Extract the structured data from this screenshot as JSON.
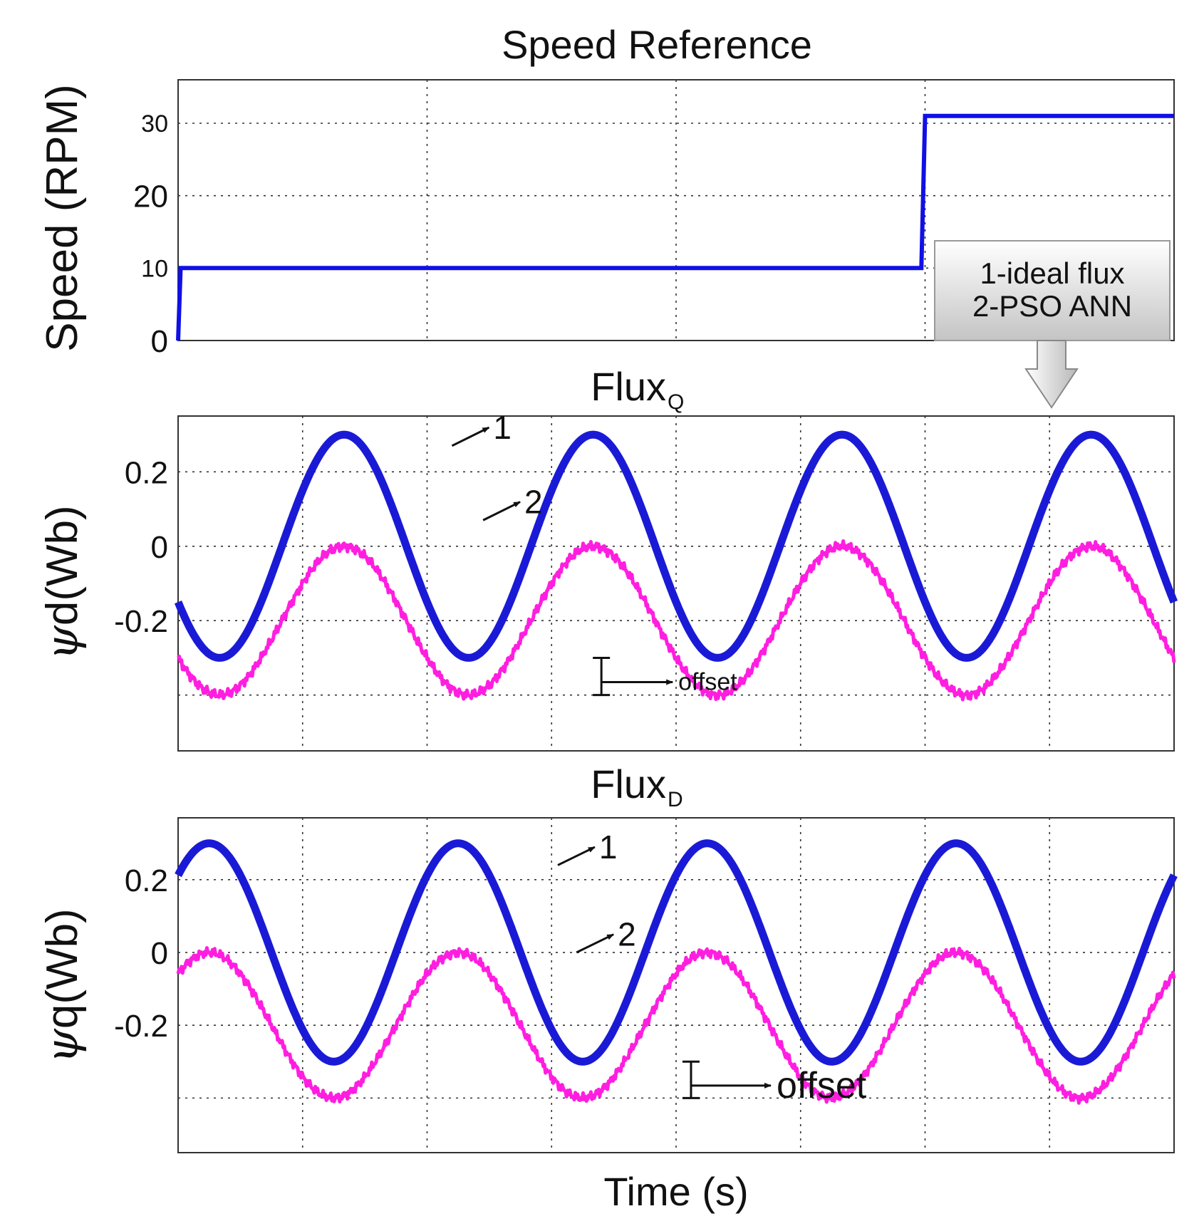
{
  "chart_data": [
    {
      "type": "line",
      "title": "Speed Reference",
      "xlabel": "",
      "ylabel": "Speed (RPM)",
      "xlim": [
        0,
        8
      ],
      "ylim": [
        0,
        36
      ],
      "yticks": [
        {
          "value": 0,
          "label": "0",
          "size": "large"
        },
        {
          "value": 10,
          "label": "10",
          "size": "small"
        },
        {
          "value": 20,
          "label": "20",
          "size": "large"
        },
        {
          "value": 30,
          "label": "30",
          "size": "small"
        }
      ],
      "xgrid": [
        2,
        4,
        6
      ],
      "series": [
        {
          "name": "Speed reference",
          "color": "#1010e6",
          "points": [
            [
              0,
              0
            ],
            [
              0.02,
              10
            ],
            [
              5.97,
              10
            ],
            [
              6.0,
              31
            ],
            [
              8,
              31
            ]
          ]
        }
      ]
    },
    {
      "type": "line",
      "title_main": "Flux",
      "title_sub": "Q",
      "xlabel": "",
      "ylabel_symbol": "ψ",
      "ylabel_rest": "d(Wb)",
      "xlim": [
        0,
        8
      ],
      "ylim": [
        -0.55,
        0.35
      ],
      "yticks": [
        {
          "value": 0.2,
          "label": "0.2"
        },
        {
          "value": 0,
          "label": "0"
        },
        {
          "value": -0.2,
          "label": "-0.2"
        }
      ],
      "ygrid_extra": [
        -0.4
      ],
      "xgrid": [
        1,
        2,
        3,
        4,
        5,
        6,
        7
      ],
      "wave": {
        "phase_deg": 210,
        "periods": [
          [
            0,
            6,
            3
          ],
          [
            6,
            8,
            1
          ]
        ]
      },
      "series": [
        {
          "name": "ideal flux",
          "label": "1",
          "color": "#1a1ad6",
          "amp": 0.3,
          "offset": 0
        },
        {
          "name": "PSO ANN",
          "label": "2",
          "color": "#ff1ee0",
          "amp": 0.2,
          "offset": -0.2
        }
      ],
      "offset_at_x": 3.4,
      "offset_label": "offset",
      "curve_labels": [
        {
          "text": "1",
          "x": 2.2,
          "y": 0.27,
          "tx": 2.6,
          "ty": 0.3
        },
        {
          "text": "2",
          "x": 2.45,
          "y": 0.07,
          "tx": 2.85,
          "ty": 0.1
        }
      ]
    },
    {
      "type": "line",
      "title_main": "Flux",
      "title_sub": "D",
      "xlabel": "Time (s)",
      "ylabel_symbol": "ψ",
      "ylabel_rest": "q(Wb)",
      "xlim": [
        0,
        8
      ],
      "ylim": [
        -0.55,
        0.37
      ],
      "yticks": [
        {
          "value": 0.2,
          "label": "0.2"
        },
        {
          "value": 0,
          "label": "0"
        },
        {
          "value": -0.2,
          "label": "-0.2"
        }
      ],
      "ygrid_extra": [
        -0.4
      ],
      "xgrid": [
        1,
        2,
        3,
        4,
        5,
        6,
        7
      ],
      "wave": {
        "phase_deg": 45,
        "periods": [
          [
            0,
            6,
            3
          ],
          [
            6,
            8,
            1
          ]
        ]
      },
      "series": [
        {
          "name": "ideal flux",
          "label": "1",
          "color": "#1a1ad6",
          "amp": 0.3,
          "offset": 0
        },
        {
          "name": "PSO ANN",
          "label": "2",
          "color": "#ff1ee0",
          "amp": 0.2,
          "offset": -0.2
        }
      ],
      "offset_at_x": 4.12,
      "offset_label": "offset",
      "curve_labels": [
        {
          "text": "1",
          "x": 3.05,
          "y": 0.24,
          "tx": 3.45,
          "ty": 0.27
        },
        {
          "text": "2",
          "x": 3.2,
          "y": 0.0,
          "tx": 3.6,
          "ty": 0.03
        }
      ]
    }
  ],
  "legend": {
    "line1": "1-ideal flux",
    "line2": "2-PSO ANN",
    "placement": "top-right"
  }
}
